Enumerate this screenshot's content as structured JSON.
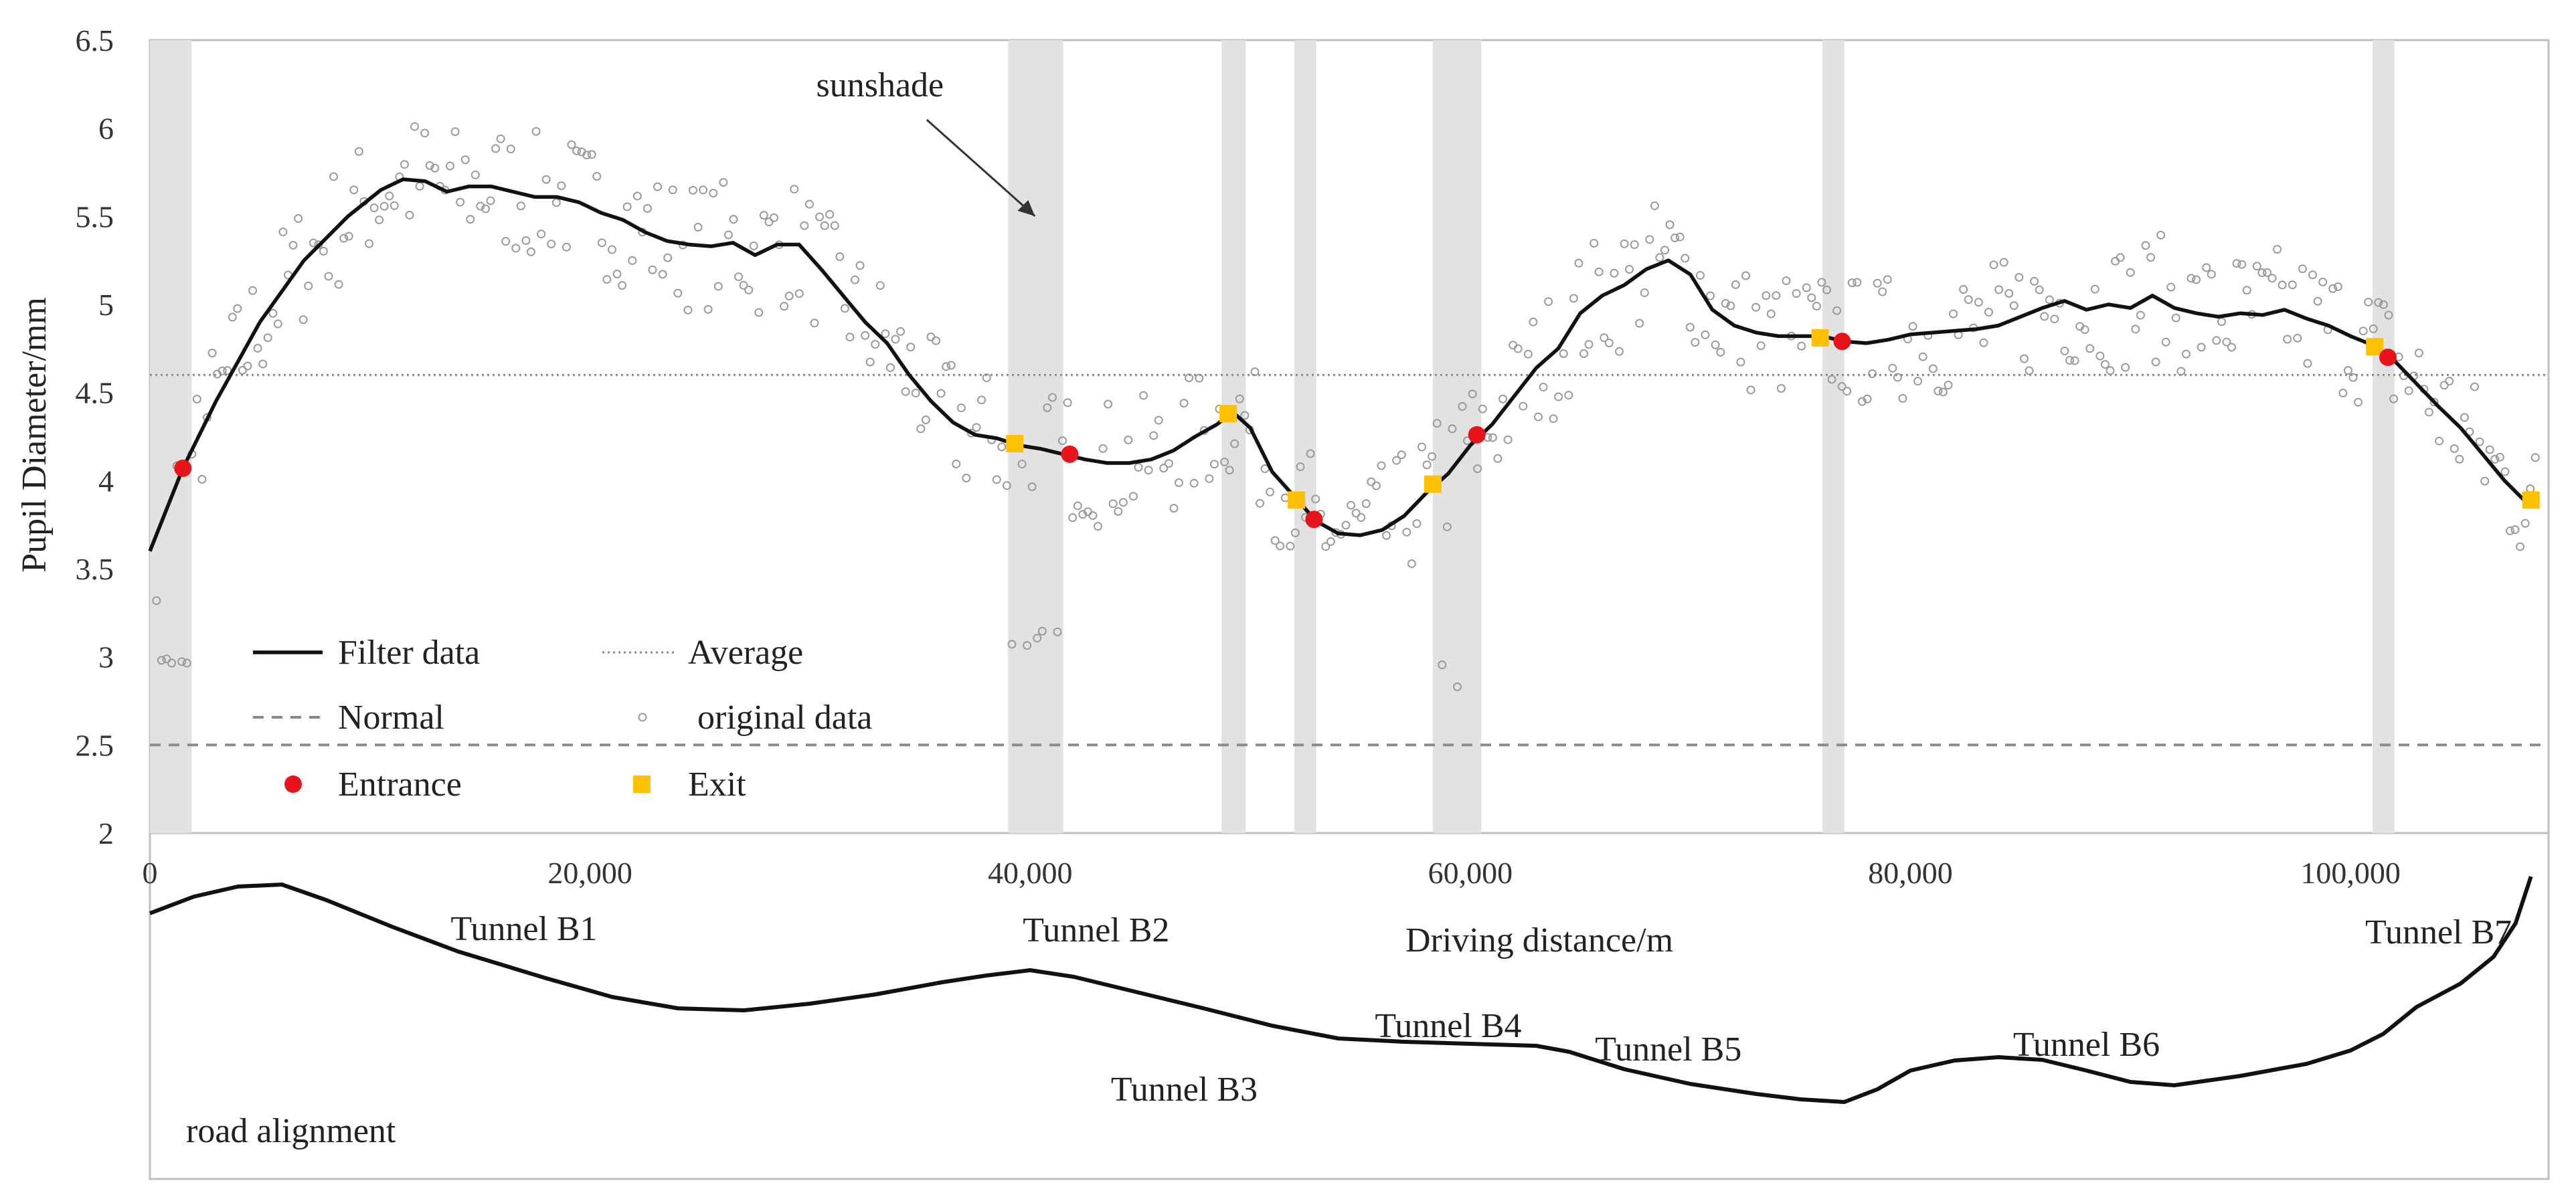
{
  "chart_data": {
    "type": "line",
    "ylabel": "Pupil Diameter/mm",
    "xlabel": "Driving distance/m",
    "ylim": [
      2,
      6.5
    ],
    "xlim": [
      0,
      109000
    ],
    "y_ticks": [
      "2",
      "2.5",
      "3",
      "3.5",
      "4",
      "4.5",
      "5",
      "5.5",
      "6",
      "6.5"
    ],
    "y_tick_values": [
      2,
      2.5,
      3,
      3.5,
      4,
      4.5,
      5,
      5.5,
      6,
      6.5
    ],
    "x_ticks": [
      "0",
      "20,000",
      "40,000",
      "60,000",
      "80,000",
      "100,000"
    ],
    "x_tick_values": [
      0,
      20000,
      40000,
      60000,
      80000,
      100000
    ],
    "annotation": "sunshade",
    "annotation_target": {
      "x": 39000,
      "y": 5.9
    },
    "annotation_anchor": {
      "x": 35000,
      "y": 6.2
    },
    "average": 4.6,
    "normal": 2.5,
    "legend": {
      "filter": "Filter data",
      "average": "Average",
      "normal": "Normal",
      "original": "original data",
      "entrance": "Entrance",
      "exit": "Exit"
    },
    "tunnel_bands": [
      [
        0,
        1900
      ],
      [
        39000,
        41500
      ],
      [
        48700,
        49800
      ],
      [
        52000,
        53000
      ],
      [
        58300,
        60500
      ],
      [
        76000,
        77000
      ],
      [
        101000,
        102000
      ]
    ],
    "filter_series": [
      [
        0,
        3.6
      ],
      [
        1500,
        4.07
      ],
      [
        3000,
        4.45
      ],
      [
        5000,
        4.9
      ],
      [
        7000,
        5.25
      ],
      [
        9000,
        5.5
      ],
      [
        10500,
        5.65
      ],
      [
        11500,
        5.71
      ],
      [
        12500,
        5.7
      ],
      [
        13500,
        5.64
      ],
      [
        14500,
        5.67
      ],
      [
        15500,
        5.67
      ],
      [
        16500,
        5.64
      ],
      [
        17500,
        5.61
      ],
      [
        18500,
        5.61
      ],
      [
        19500,
        5.58
      ],
      [
        20500,
        5.52
      ],
      [
        21500,
        5.48
      ],
      [
        22500,
        5.41
      ],
      [
        23500,
        5.36
      ],
      [
        24500,
        5.34
      ],
      [
        25500,
        5.33
      ],
      [
        26500,
        5.35
      ],
      [
        27500,
        5.28
      ],
      [
        28500,
        5.34
      ],
      [
        29500,
        5.34
      ],
      [
        30500,
        5.2
      ],
      [
        31500,
        5.05
      ],
      [
        32500,
        4.9
      ],
      [
        33500,
        4.78
      ],
      [
        34500,
        4.6
      ],
      [
        35500,
        4.45
      ],
      [
        36500,
        4.33
      ],
      [
        37500,
        4.26
      ],
      [
        38500,
        4.24
      ],
      [
        39500,
        4.2
      ],
      [
        40500,
        4.18
      ],
      [
        41500,
        4.15
      ],
      [
        42500,
        4.12
      ],
      [
        43500,
        4.1
      ],
      [
        44500,
        4.1
      ],
      [
        45500,
        4.12
      ],
      [
        46500,
        4.17
      ],
      [
        47500,
        4.25
      ],
      [
        48500,
        4.32
      ],
      [
        49200,
        4.39
      ],
      [
        50000,
        4.3
      ],
      [
        51000,
        4.05
      ],
      [
        52000,
        3.91
      ],
      [
        53000,
        3.77
      ],
      [
        54000,
        3.7
      ],
      [
        55000,
        3.69
      ],
      [
        56000,
        3.72
      ],
      [
        57000,
        3.8
      ],
      [
        58000,
        3.93
      ],
      [
        59000,
        4.04
      ],
      [
        60000,
        4.2
      ],
      [
        61000,
        4.32
      ],
      [
        62000,
        4.48
      ],
      [
        63000,
        4.64
      ],
      [
        64000,
        4.75
      ],
      [
        65000,
        4.95
      ],
      [
        66000,
        5.05
      ],
      [
        67000,
        5.11
      ],
      [
        68000,
        5.2
      ],
      [
        69000,
        5.25
      ],
      [
        70000,
        5.17
      ],
      [
        71000,
        4.97
      ],
      [
        72000,
        4.88
      ],
      [
        73000,
        4.84
      ],
      [
        74000,
        4.82
      ],
      [
        75000,
        4.82
      ],
      [
        76000,
        4.82
      ],
      [
        77000,
        4.79
      ],
      [
        78000,
        4.78
      ],
      [
        79000,
        4.8
      ],
      [
        80000,
        4.83
      ],
      [
        81000,
        4.84
      ],
      [
        82000,
        4.85
      ],
      [
        83000,
        4.86
      ],
      [
        84000,
        4.88
      ],
      [
        85000,
        4.93
      ],
      [
        86000,
        4.98
      ],
      [
        87000,
        5.02
      ],
      [
        88000,
        4.97
      ],
      [
        89000,
        5.0
      ],
      [
        90000,
        4.98
      ],
      [
        91000,
        5.05
      ],
      [
        92000,
        4.98
      ],
      [
        93000,
        4.95
      ],
      [
        94000,
        4.93
      ],
      [
        95000,
        4.95
      ],
      [
        96000,
        4.94
      ],
      [
        97000,
        4.97
      ],
      [
        98000,
        4.92
      ],
      [
        99000,
        4.88
      ],
      [
        100000,
        4.82
      ],
      [
        101000,
        4.77
      ],
      [
        102000,
        4.68
      ],
      [
        103000,
        4.55
      ],
      [
        104000,
        4.42
      ],
      [
        105000,
        4.3
      ],
      [
        106000,
        4.15
      ],
      [
        107000,
        4.0
      ],
      [
        108200,
        3.85
      ]
    ],
    "entrances": [
      [
        1500,
        4.07
      ],
      [
        41800,
        4.15
      ],
      [
        52900,
        3.78
      ],
      [
        60300,
        4.26
      ],
      [
        76900,
        4.79
      ],
      [
        101700,
        4.7
      ]
    ],
    "exits": [
      [
        39300,
        4.21
      ],
      [
        49000,
        4.38
      ],
      [
        52100,
        3.89
      ],
      [
        58300,
        3.98
      ],
      [
        75900,
        4.81
      ],
      [
        101100,
        4.76
      ],
      [
        108200,
        3.89
      ]
    ],
    "tunnel_labels": [
      {
        "text": "Tunnel B1",
        "x": 17000,
        "y": 1405
      },
      {
        "text": "Tunnel B2",
        "x": 43000,
        "y": 1407
      },
      {
        "text": "Tunnel B3",
        "x": 47000,
        "y": 1645
      },
      {
        "text": "Tunnel B4",
        "x": 59000,
        "y": 1550
      },
      {
        "text": "Tunnel B5",
        "x": 69000,
        "y": 1585
      },
      {
        "text": "Tunnel B6",
        "x": 88000,
        "y": 1578
      },
      {
        "text": "Tunnel B7",
        "x": 104000,
        "y": 1410
      }
    ],
    "road_alignment_label": "road alignment",
    "road_profile": [
      [
        0,
        1365
      ],
      [
        2000,
        1340
      ],
      [
        4000,
        1325
      ],
      [
        6000,
        1322
      ],
      [
        8000,
        1345
      ],
      [
        11000,
        1385
      ],
      [
        14000,
        1422
      ],
      [
        18000,
        1462
      ],
      [
        21000,
        1490
      ],
      [
        24000,
        1507
      ],
      [
        27000,
        1510
      ],
      [
        30000,
        1500
      ],
      [
        33000,
        1486
      ],
      [
        36000,
        1468
      ],
      [
        38000,
        1458
      ],
      [
        40000,
        1450
      ],
      [
        42000,
        1460
      ],
      [
        45000,
        1484
      ],
      [
        48000,
        1508
      ],
      [
        51000,
        1533
      ],
      [
        54000,
        1552
      ],
      [
        57000,
        1557
      ],
      [
        60000,
        1560
      ],
      [
        63000,
        1563
      ],
      [
        64500,
        1572
      ],
      [
        67000,
        1598
      ],
      [
        70000,
        1620
      ],
      [
        73000,
        1635
      ],
      [
        75000,
        1643
      ],
      [
        77000,
        1647
      ],
      [
        78500,
        1628
      ],
      [
        80000,
        1600
      ],
      [
        82000,
        1585
      ],
      [
        84000,
        1580
      ],
      [
        86000,
        1584
      ],
      [
        88000,
        1600
      ],
      [
        90000,
        1617
      ],
      [
        92000,
        1622
      ],
      [
        95000,
        1608
      ],
      [
        98000,
        1590
      ],
      [
        100000,
        1570
      ],
      [
        101500,
        1545
      ],
      [
        103000,
        1505
      ],
      [
        105000,
        1470
      ],
      [
        106500,
        1430
      ],
      [
        107500,
        1380
      ],
      [
        108200,
        1310
      ]
    ]
  }
}
